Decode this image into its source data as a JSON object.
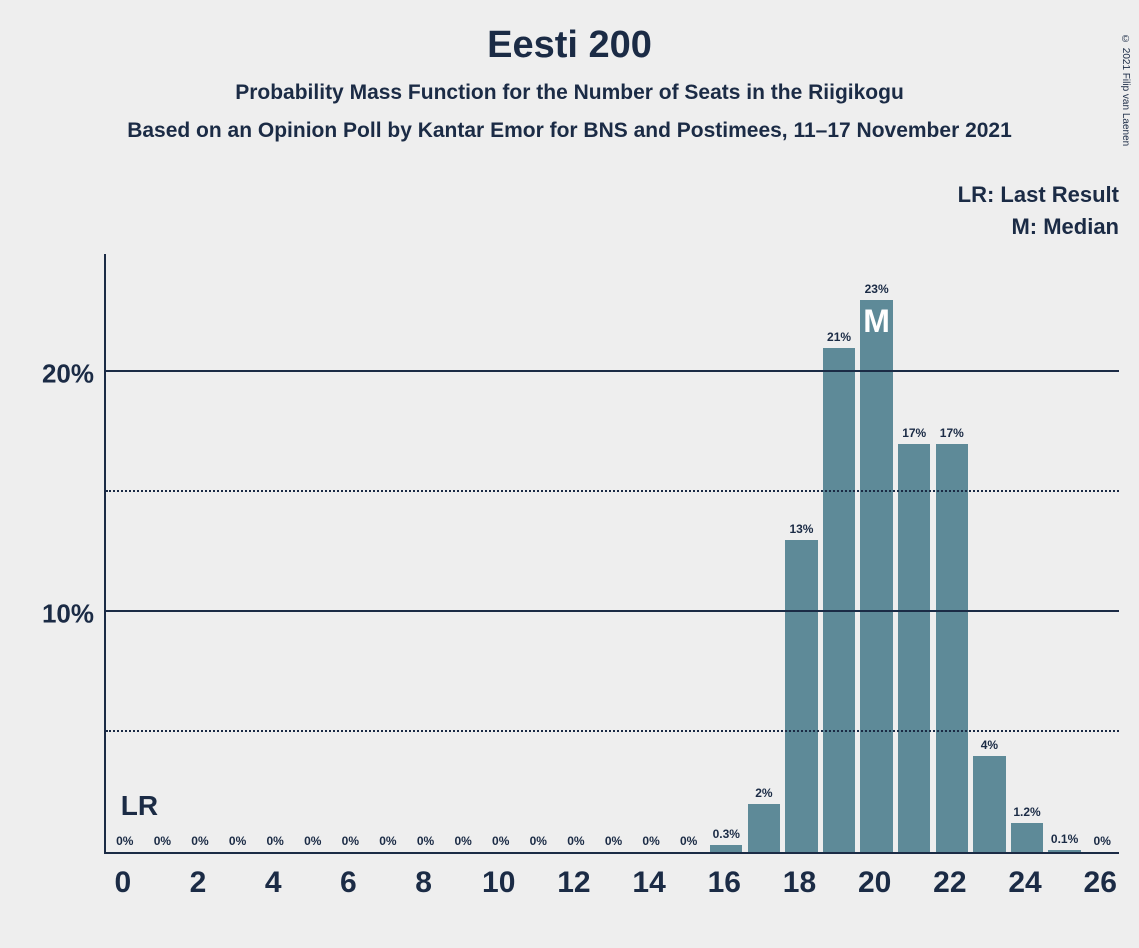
{
  "copyright": "© 2021 Filip van Laenen",
  "title": "Eesti 200",
  "subtitle": "Probability Mass Function for the Number of Seats in the Riigikogu",
  "subtitle2": "Based on an Opinion Poll by Kantar Emor for BNS and Postimees, 11–17 November 2021",
  "legend": {
    "lr": "LR: Last Result",
    "m": "M: Median"
  },
  "chart": {
    "type": "bar",
    "ylim_max": 25,
    "y_major": [
      10,
      20
    ],
    "y_minor": [
      5,
      15
    ],
    "y_labels": {
      "10": "10%",
      "20": "20%"
    },
    "x_min": 0,
    "x_max": 26,
    "x_ticks": [
      0,
      2,
      4,
      6,
      8,
      10,
      12,
      14,
      16,
      18,
      20,
      22,
      24,
      26
    ],
    "bar_color": "#5e8a98",
    "background_color": "#eeeeee",
    "axis_color": "#1b2b45",
    "bar_width_ratio": 0.86,
    "lr_position": 0,
    "lr_text": "LR",
    "median_position": 20,
    "median_text": "M",
    "bars": [
      {
        "x": 0,
        "v": 0,
        "label": "0%"
      },
      {
        "x": 1,
        "v": 0,
        "label": "0%"
      },
      {
        "x": 2,
        "v": 0,
        "label": "0%"
      },
      {
        "x": 3,
        "v": 0,
        "label": "0%"
      },
      {
        "x": 4,
        "v": 0,
        "label": "0%"
      },
      {
        "x": 5,
        "v": 0,
        "label": "0%"
      },
      {
        "x": 6,
        "v": 0,
        "label": "0%"
      },
      {
        "x": 7,
        "v": 0,
        "label": "0%"
      },
      {
        "x": 8,
        "v": 0,
        "label": "0%"
      },
      {
        "x": 9,
        "v": 0,
        "label": "0%"
      },
      {
        "x": 10,
        "v": 0,
        "label": "0%"
      },
      {
        "x": 11,
        "v": 0,
        "label": "0%"
      },
      {
        "x": 12,
        "v": 0,
        "label": "0%"
      },
      {
        "x": 13,
        "v": 0,
        "label": "0%"
      },
      {
        "x": 14,
        "v": 0,
        "label": "0%"
      },
      {
        "x": 15,
        "v": 0,
        "label": "0%"
      },
      {
        "x": 16,
        "v": 0.3,
        "label": "0.3%"
      },
      {
        "x": 17,
        "v": 2,
        "label": "2%"
      },
      {
        "x": 18,
        "v": 13,
        "label": "13%"
      },
      {
        "x": 19,
        "v": 21,
        "label": "21%"
      },
      {
        "x": 20,
        "v": 23,
        "label": "23%"
      },
      {
        "x": 21,
        "v": 17,
        "label": "17%"
      },
      {
        "x": 22,
        "v": 17,
        "label": "17%"
      },
      {
        "x": 23,
        "v": 4,
        "label": "4%"
      },
      {
        "x": 24,
        "v": 1.2,
        "label": "1.2%"
      },
      {
        "x": 25,
        "v": 0.1,
        "label": "0.1%"
      },
      {
        "x": 26,
        "v": 0,
        "label": "0%"
      }
    ]
  }
}
